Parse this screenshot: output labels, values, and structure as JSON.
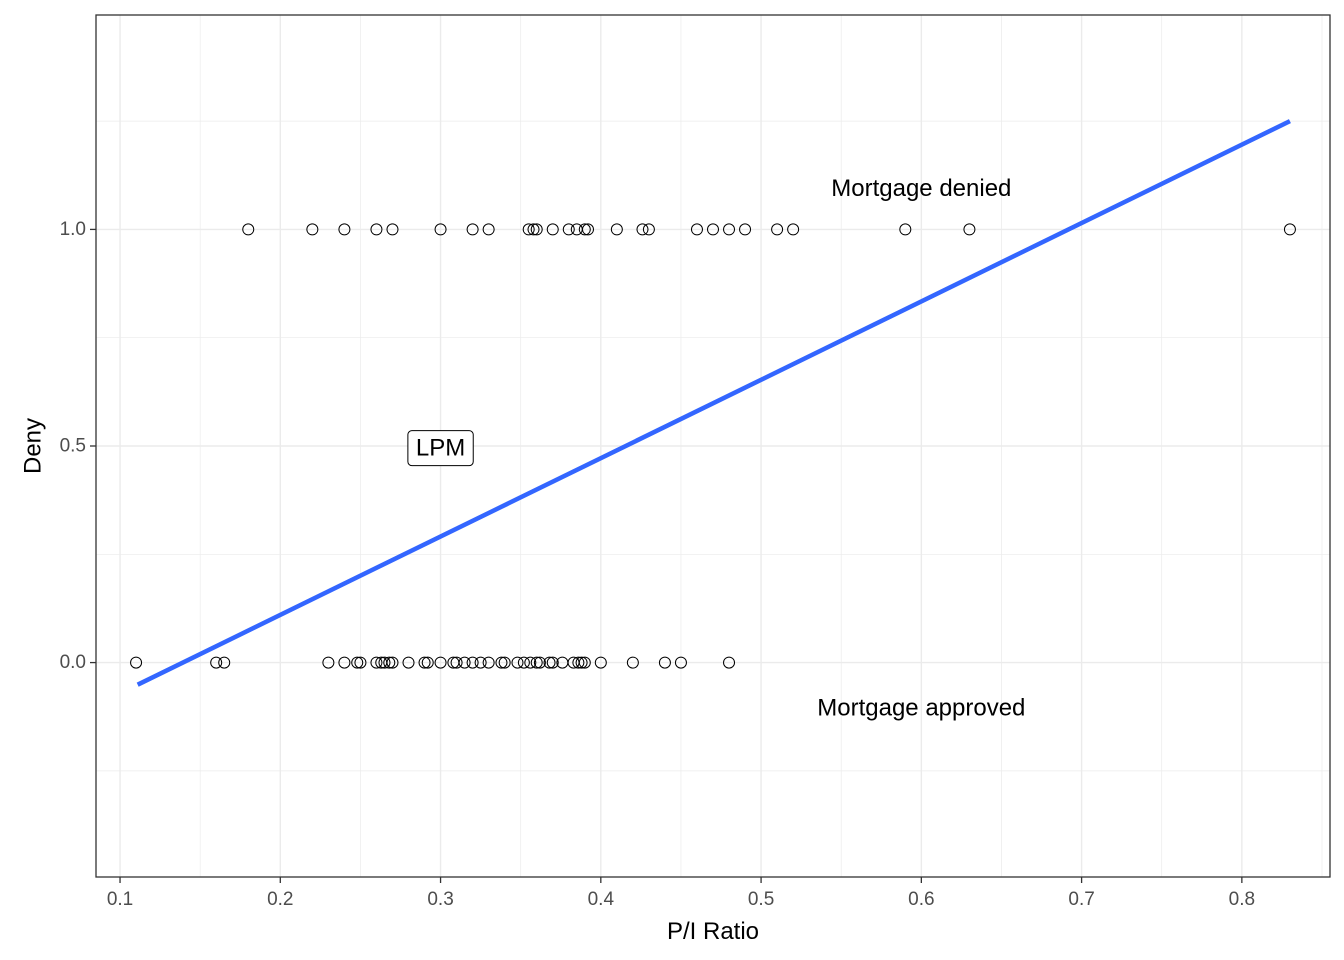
{
  "chart_data": {
    "type": "scatter",
    "xlabel": "P/I Ratio",
    "ylabel": "Deny",
    "xlim": [
      0.085,
      0.855
    ],
    "ylim": [
      -0.495,
      1.495
    ],
    "x_ticks": [
      0.1,
      0.2,
      0.3,
      0.4,
      0.5,
      0.6,
      0.7,
      0.8
    ],
    "x_tick_labels": [
      "0.1",
      "0.2",
      "0.3",
      "0.4",
      "0.5",
      "0.6",
      "0.7",
      "0.8"
    ],
    "y_ticks": [
      0.0,
      0.5,
      1.0
    ],
    "y_tick_labels": [
      "0.0",
      "0.5",
      "1.0"
    ],
    "grid": true,
    "colors": {
      "line": "#3366FF",
      "grid": "#ebebeb",
      "points_stroke": "#000000",
      "panel_border": "#333333"
    },
    "points": {
      "denied": {
        "y": 1,
        "x": [
          0.18,
          0.22,
          0.24,
          0.26,
          0.27,
          0.3,
          0.32,
          0.33,
          0.355,
          0.358,
          0.36,
          0.37,
          0.38,
          0.385,
          0.39,
          0.392,
          0.41,
          0.426,
          0.43,
          0.46,
          0.47,
          0.48,
          0.49,
          0.51,
          0.52,
          0.59,
          0.63,
          0.83
        ]
      },
      "approved": {
        "y": 0,
        "x": [
          0.11,
          0.16,
          0.165,
          0.23,
          0.24,
          0.248,
          0.25,
          0.26,
          0.263,
          0.265,
          0.268,
          0.27,
          0.28,
          0.29,
          0.292,
          0.3,
          0.308,
          0.31,
          0.315,
          0.32,
          0.325,
          0.33,
          0.338,
          0.34,
          0.348,
          0.352,
          0.356,
          0.36,
          0.362,
          0.368,
          0.37,
          0.376,
          0.383,
          0.386,
          0.388,
          0.39,
          0.4,
          0.42,
          0.44,
          0.45,
          0.48
        ]
      }
    },
    "fit_line": {
      "name": "LPM",
      "x": [
        0.111,
        0.83
      ],
      "y": [
        -0.051,
        1.25
      ]
    },
    "annotations": [
      {
        "text": "Mortgage denied",
        "x": 0.6,
        "y": 1.095,
        "box": false
      },
      {
        "text": "Mortgage approved",
        "x": 0.6,
        "y": -0.105,
        "box": false
      },
      {
        "text": "LPM",
        "x": 0.3,
        "y": 0.495,
        "box": true
      }
    ]
  }
}
